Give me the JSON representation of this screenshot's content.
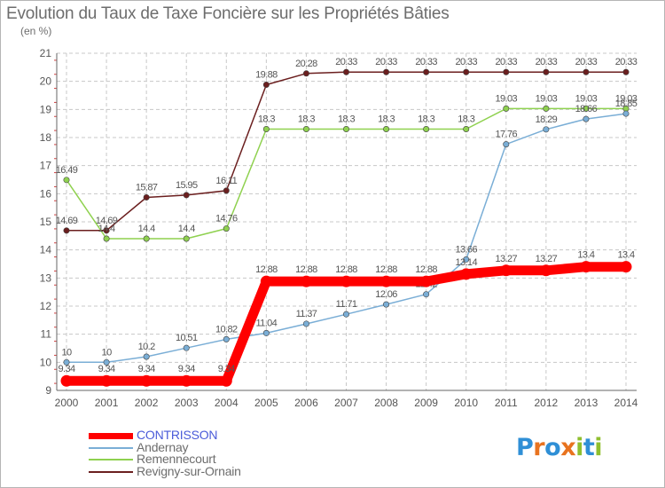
{
  "chart_data": {
    "type": "line",
    "title": "Evolution du Taux de Taxe Foncière sur les Propriétés Bâties",
    "unit": "(en %)",
    "x": [
      "2000",
      "2001",
      "2002",
      "2003",
      "2004",
      "2005",
      "2006",
      "2007",
      "2008",
      "2009",
      "2010",
      "2011",
      "2012",
      "2013",
      "2014"
    ],
    "ylim": [
      9,
      21
    ],
    "yticks": [
      9,
      10,
      11,
      12,
      13,
      14,
      15,
      16,
      17,
      18,
      19,
      20,
      21
    ],
    "grid": true,
    "legend_position": "bottom-left",
    "series": [
      {
        "name": "Revigny-sur-Ornain",
        "color": "#6b1f1f",
        "values": [
          14.69,
          14.69,
          15.87,
          15.95,
          16.11,
          19.88,
          20.28,
          20.33,
          20.33,
          20.33,
          20.33,
          20.33,
          20.33,
          20.33,
          20.33
        ],
        "labels": [
          "14.69",
          "14.69",
          "15.87",
          "15.95",
          "16.11",
          "19.88",
          "20.28",
          "20.33",
          "20.33",
          "20.33",
          "20.33",
          "20.33",
          "20.33",
          "20.33",
          "20.33"
        ]
      },
      {
        "name": "Remennecourt",
        "color": "#8fd14f",
        "values": [
          16.49,
          14.4,
          14.4,
          14.4,
          14.76,
          18.3,
          18.3,
          18.3,
          18.3,
          18.3,
          18.3,
          19.03,
          19.03,
          19.03,
          19.03
        ],
        "labels": [
          "16.49",
          "14.4",
          "14.4",
          "14.4",
          "14.76",
          "18.3",
          "18.3",
          "18.3",
          "18.3",
          "18.3",
          "18.3",
          "19.03",
          "19.03",
          "19.03",
          "19.03"
        ]
      },
      {
        "name": "Andernay",
        "color": "#7aaed6",
        "values": [
          10,
          10,
          10.2,
          10.51,
          10.82,
          11.04,
          11.37,
          11.71,
          12.06,
          12.42,
          13.66,
          17.76,
          18.29,
          18.66,
          18.85
        ],
        "labels": [
          "10",
          "10",
          "10.2",
          "10.51",
          "10.82",
          "11.04",
          "11.37",
          "11.71",
          "12.06",
          "12.42",
          "13.66",
          "17.76",
          "18.29",
          "18.66",
          "18.85"
        ]
      },
      {
        "name": "CONTRISSON",
        "color": "#ff0000",
        "values": [
          9.34,
          9.34,
          9.34,
          9.34,
          9.34,
          12.88,
          12.88,
          12.88,
          12.88,
          12.88,
          13.14,
          13.27,
          13.27,
          13.4,
          13.4
        ],
        "labels": [
          "9.34",
          "9.34",
          "9.34",
          "9.34",
          "9.34",
          "12.88",
          "12.88",
          "12.88",
          "12.88",
          "12.88",
          "13.14",
          "13.27",
          "13.27",
          "13.4",
          "13.4"
        ]
      }
    ]
  },
  "legend": [
    {
      "name": "CONTRISSON",
      "color": "#ff0000",
      "text_color": "#4a5bd9"
    },
    {
      "name": "Andernay",
      "color": "#7aaed6",
      "text_color": "#6d6d6d"
    },
    {
      "name": "Remennecourt",
      "color": "#8fd14f",
      "text_color": "#6d6d6d"
    },
    {
      "name": "Revigny-sur-Ornain",
      "color": "#6b1f1f",
      "text_color": "#6d6d6d"
    }
  ],
  "logo": {
    "text": "Proxiti",
    "colors": [
      "#2f8fd6",
      "#e8731f",
      "#2f8fd6",
      "#e8731f",
      "#8fbf2f",
      "#2f8fd6",
      "#8fbf2f"
    ]
  }
}
